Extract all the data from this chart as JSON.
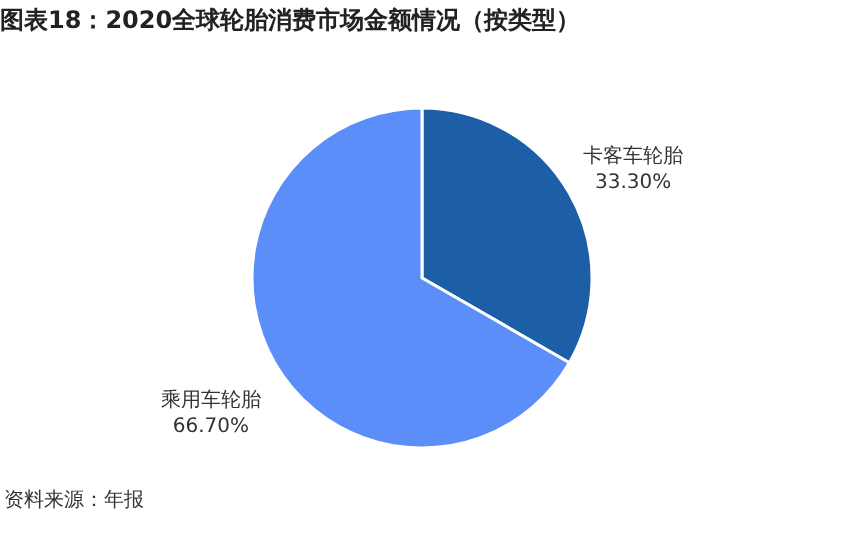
{
  "chart_data": {
    "type": "pie",
    "title": "图表18：2020全球轮胎消费市场金额情况（按类型）",
    "categories": [
      "卡客车轮胎",
      "乘用车轮胎"
    ],
    "values": [
      33.3,
      66.7
    ],
    "value_labels": [
      "33.30%",
      "66.70%"
    ],
    "colors": [
      "#1d5fa6",
      "#5b8ef8"
    ],
    "annotations": [
      "资料来源：年报"
    ]
  }
}
